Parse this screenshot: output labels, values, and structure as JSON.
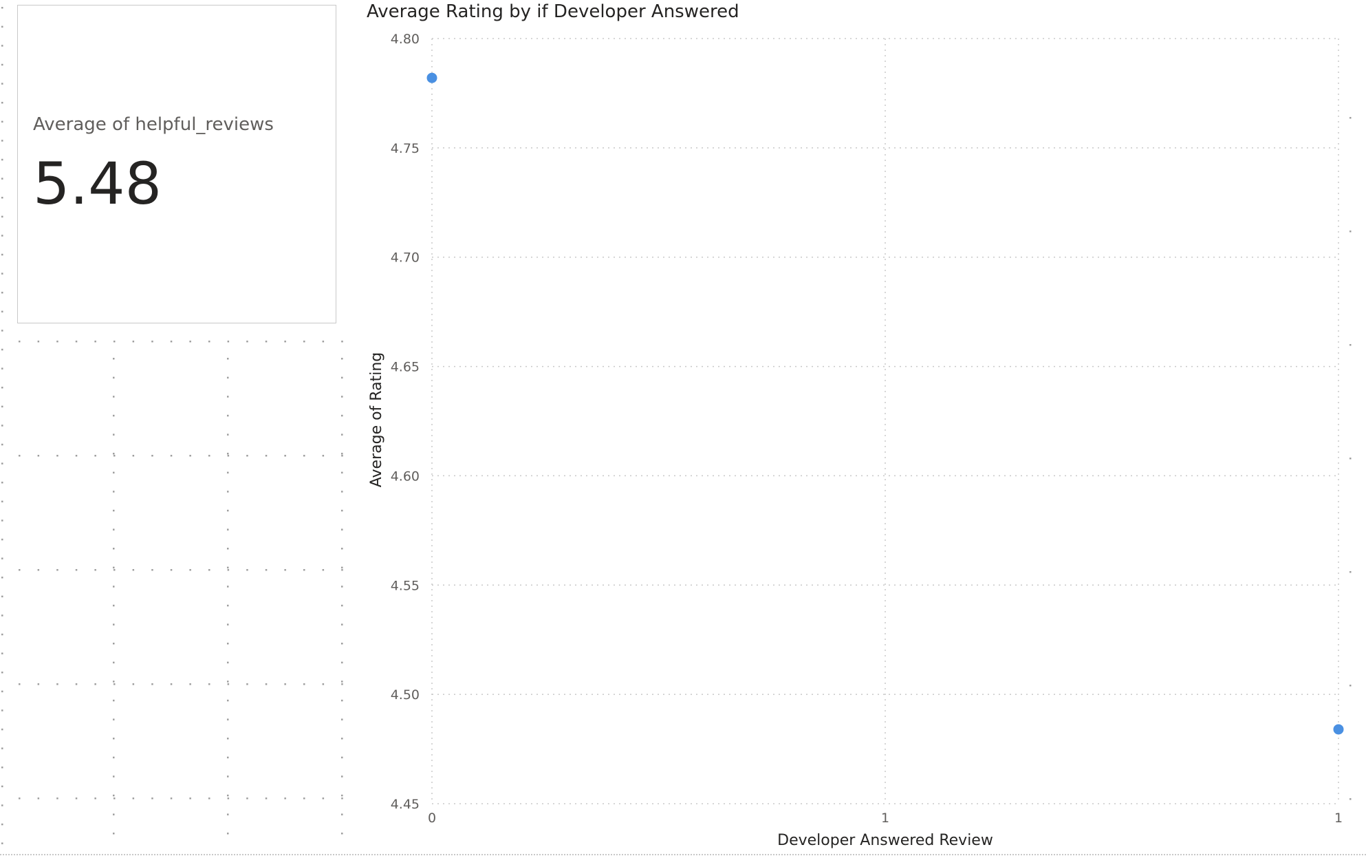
{
  "card": {
    "label": "Average of helpful_reviews",
    "value": "5.48"
  },
  "chart_data": {
    "type": "scatter",
    "title": "Average Rating by if Developer Answered",
    "xlabel": "Developer Answered Review",
    "ylabel": "Average of Rating",
    "xlim": [
      0,
      1
    ],
    "ylim": [
      4.45,
      4.8
    ],
    "x_ticks": [
      "0",
      "1",
      "1"
    ],
    "y_ticks": [
      "4.80",
      "4.75",
      "4.70",
      "4.65",
      "4.60",
      "4.55",
      "4.50",
      "4.45"
    ],
    "y_tick_values": [
      4.8,
      4.75,
      4.7,
      4.65,
      4.6,
      4.55,
      4.5,
      4.45
    ],
    "grid": true,
    "points": [
      {
        "x": 0,
        "y": 4.782
      },
      {
        "x": 1,
        "y": 4.484
      }
    ],
    "marker_color": "#4a90e2"
  },
  "colors": {
    "grid": "#c8c8c8",
    "dots": "#9e9e9e"
  }
}
